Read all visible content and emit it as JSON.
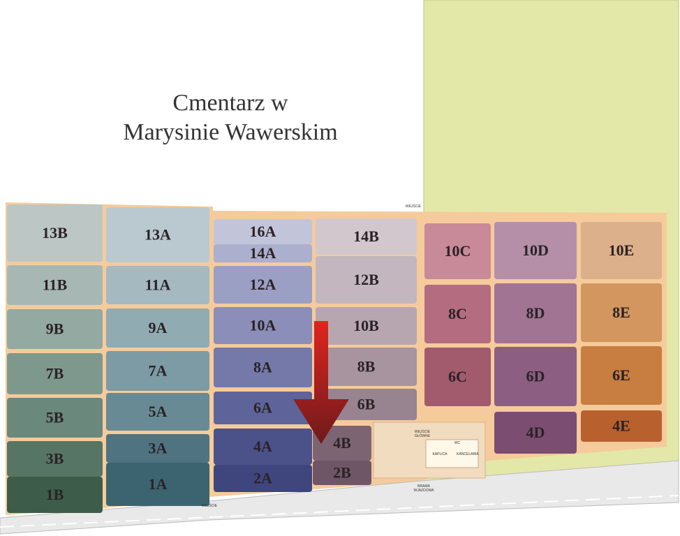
{
  "title": [
    "Cmentarz w",
    "Marysinie Wawerskim"
  ],
  "sections": [
    {
      "label": "13B",
      "color": "#bcc6c5"
    },
    {
      "label": "11B",
      "color": "#a7b7b4"
    },
    {
      "label": "9B",
      "color": "#93a9a1"
    },
    {
      "label": "7B",
      "color": "#7e988e"
    },
    {
      "label": "5B",
      "color": "#6a887c"
    },
    {
      "label": "3B",
      "color": "#567565"
    },
    {
      "label": "1B",
      "color": "#3d5d4a"
    },
    {
      "label": "13A",
      "color": "#b9c9cf"
    },
    {
      "label": "11A",
      "color": "#a5b9c1"
    },
    {
      "label": "9A",
      "color": "#91abb3"
    },
    {
      "label": "7A",
      "color": "#7c9ba4"
    },
    {
      "label": "5A",
      "color": "#678a95"
    },
    {
      "label": "3A",
      "color": "#4f7380"
    },
    {
      "label": "1A",
      "color": "#3b6470"
    },
    {
      "label": "16A",
      "color": "#c2c4da"
    },
    {
      "label": "14A",
      "color": "#acafcd"
    },
    {
      "label": "12A",
      "color": "#9b9fc3"
    },
    {
      "label": "10A",
      "color": "#8a8eb8"
    },
    {
      "label": "8A",
      "color": "#7479aa"
    },
    {
      "label": "6A",
      "color": "#5e649a"
    },
    {
      "label": "4A",
      "color": "#4b5189"
    },
    {
      "label": "2A",
      "color": "#3f467e"
    },
    {
      "label": "14B",
      "color": "#d2c7cd"
    },
    {
      "label": "12B",
      "color": "#c3b6be"
    },
    {
      "label": "10B",
      "color": "#b7a6b0"
    },
    {
      "label": "8B",
      "color": "#a7949e"
    },
    {
      "label": "6B",
      "color": "#978490"
    },
    {
      "label": "4B",
      "color": "#7d6472"
    },
    {
      "label": "2B",
      "color": "#6f5666"
    },
    {
      "label": "10C",
      "color": "#c88a98"
    },
    {
      "label": "8C",
      "color": "#b46d80"
    },
    {
      "label": "6C",
      "color": "#a25a6d"
    },
    {
      "label": "10D",
      "color": "#b48fa7"
    },
    {
      "label": "8D",
      "color": "#a07492"
    },
    {
      "label": "6D",
      "color": "#8c5e81"
    },
    {
      "label": "4D",
      "color": "#7b4d71"
    },
    {
      "label": "10E",
      "color": "#dcb08a"
    },
    {
      "label": "8E",
      "color": "#d3965e"
    },
    {
      "label": "6E",
      "color": "#c87d41"
    },
    {
      "label": "4E",
      "color": "#b8612e"
    }
  ],
  "small_labels": [
    "WEJŚCIE",
    "WEJŚCIE",
    "GŁÓWNE",
    "WEJŚCIE",
    "KAPLICA",
    "KANCELARIA",
    "WC",
    "BRAMA",
    "WJAZDOWA"
  ]
}
